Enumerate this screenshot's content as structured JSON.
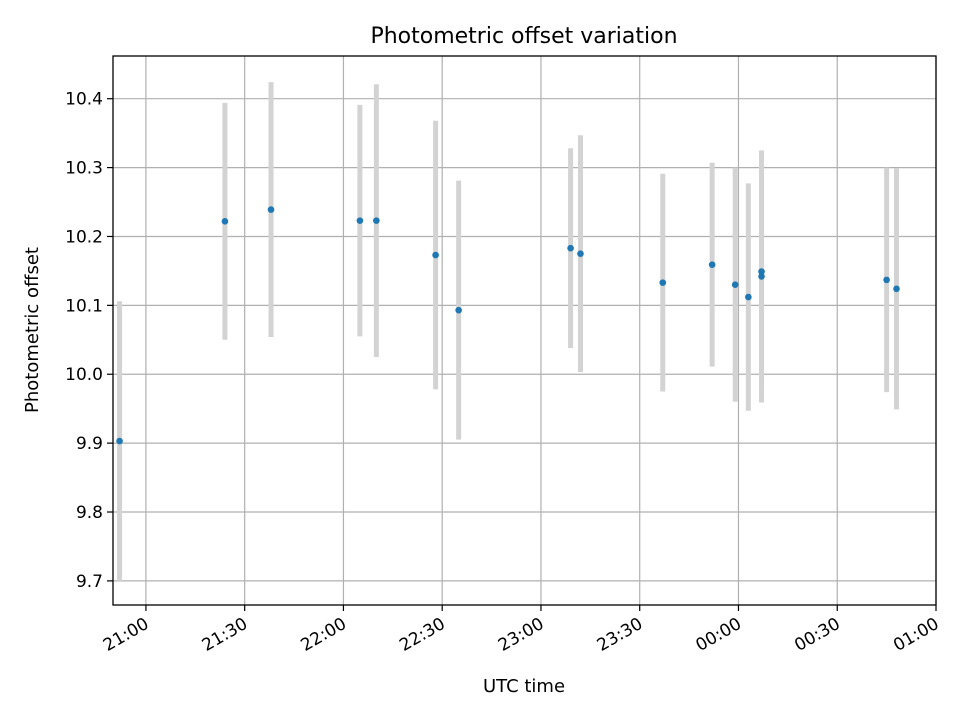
{
  "chart_data": {
    "type": "scatter",
    "title": "Photometric offset variation",
    "xlabel": "UTC time",
    "ylabel": "Photometric offset",
    "grid": true,
    "x_ticks": [
      "21:00",
      "21:30",
      "22:00",
      "22:30",
      "23:00",
      "23:30",
      "00:00",
      "00:30",
      "01:00"
    ],
    "y_ticks": [
      "9.7",
      "9.8",
      "9.9",
      "10.0",
      "10.1",
      "10.2",
      "10.3",
      "10.4"
    ],
    "xlim": [
      "20:50",
      "01:00"
    ],
    "ylim": [
      9.665,
      10.462
    ],
    "colors": {
      "point": "#1f77b4",
      "errorbar": "#d3d3d3",
      "grid": "#b0b0b0"
    },
    "points": [
      {
        "x": "20:52",
        "y": 9.903,
        "err": 0.203
      },
      {
        "x": "21:24",
        "y": 10.222,
        "err": 0.172
      },
      {
        "x": "21:38",
        "y": 10.239,
        "err": 0.185
      },
      {
        "x": "22:05",
        "y": 10.223,
        "err": 0.168
      },
      {
        "x": "22:10",
        "y": 10.223,
        "err": 0.198
      },
      {
        "x": "22:28",
        "y": 10.173,
        "err": 0.195
      },
      {
        "x": "22:35",
        "y": 10.093,
        "err": 0.188
      },
      {
        "x": "23:09",
        "y": 10.183,
        "err": 0.145
      },
      {
        "x": "23:12",
        "y": 10.175,
        "err": 0.172
      },
      {
        "x": "23:37",
        "y": 10.133,
        "err": 0.158
      },
      {
        "x": "23:52",
        "y": 10.159,
        "err": 0.148
      },
      {
        "x": "23:59",
        "y": 10.13,
        "err": 0.17
      },
      {
        "x": "00:03",
        "y": 10.112,
        "err": 0.165
      },
      {
        "x": "00:07",
        "y": 10.142,
        "err": 0.183
      },
      {
        "x": "00:07",
        "y": 10.149,
        "err": 0.173
      },
      {
        "x": "00:45",
        "y": 10.137,
        "err": 0.163
      },
      {
        "x": "00:48",
        "y": 10.124,
        "err": 0.175
      }
    ]
  }
}
